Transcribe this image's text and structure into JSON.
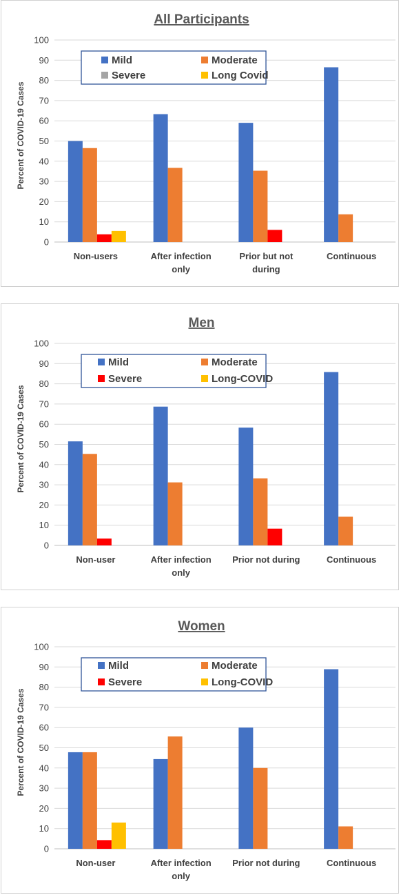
{
  "chart_data": [
    {
      "type": "bar",
      "title": "All Participants",
      "ylabel": "Percent of COVID-19 Cases",
      "xlabel": "",
      "ylim": [
        0,
        100
      ],
      "yticks": [
        0,
        10,
        20,
        30,
        40,
        50,
        60,
        70,
        80,
        90,
        100
      ],
      "grid": true,
      "legend_position": "top",
      "categories": [
        [
          "Non-users"
        ],
        [
          "After infection",
          "only"
        ],
        [
          "Prior but not",
          "during"
        ],
        [
          "Continuous"
        ]
      ],
      "series": [
        {
          "name": "Mild",
          "color": "#4472c4",
          "values": [
            50,
            63.3,
            59,
            86.5
          ]
        },
        {
          "name": "Moderate",
          "color": "#ed7d31",
          "values": [
            46.5,
            36.7,
            35.3,
            13.7
          ]
        },
        {
          "name": "Severe",
          "color": "#a5a5a5",
          "values": [
            0,
            0,
            0,
            0
          ]
        },
        {
          "name": "Long Covid",
          "color": "#ffc000",
          "values": [
            5.5,
            0,
            0,
            0
          ]
        },
        {
          "name": "",
          "color": "#ff0000",
          "values": [
            3.8,
            0,
            6,
            0
          ]
        }
      ]
    },
    {
      "type": "bar",
      "title": "Men",
      "ylabel": "Percent of COVID-19 Cases",
      "xlabel": "",
      "ylim": [
        0,
        100
      ],
      "yticks": [
        0,
        10,
        20,
        30,
        40,
        50,
        60,
        70,
        80,
        90,
        100
      ],
      "grid": true,
      "legend_position": "top",
      "categories": [
        [
          "Non-user"
        ],
        [
          "After infection",
          "only"
        ],
        [
          "Prior not during"
        ],
        [
          "Continuous"
        ]
      ],
      "series": [
        {
          "name": "Mild",
          "color": "#4472c4",
          "values": [
            51.5,
            68.7,
            58.3,
            85.8
          ]
        },
        {
          "name": "Moderate",
          "color": "#ed7d31",
          "values": [
            45.3,
            31.2,
            33.2,
            14.2
          ]
        },
        {
          "name": "Severe",
          "color": "#ff0000",
          "values": [
            3.4,
            0,
            8.3,
            0
          ]
        },
        {
          "name": "Long-COVID",
          "color": "#ffc000",
          "values": [
            0,
            0,
            0,
            0
          ]
        }
      ]
    },
    {
      "type": "bar",
      "title": "Women",
      "ylabel": "Percent of COVID-19 Cases",
      "xlabel": "",
      "ylim": [
        0,
        100
      ],
      "yticks": [
        0,
        10,
        20,
        30,
        40,
        50,
        60,
        70,
        80,
        90,
        100
      ],
      "grid": true,
      "legend_position": "top",
      "categories": [
        [
          "Non-user"
        ],
        [
          "After infection",
          "only"
        ],
        [
          "Prior not during"
        ],
        [
          "Continuous"
        ]
      ],
      "series": [
        {
          "name": "Mild",
          "color": "#4472c4",
          "values": [
            47.8,
            44.4,
            60,
            88.9
          ]
        },
        {
          "name": "Moderate",
          "color": "#ed7d31",
          "values": [
            47.8,
            55.6,
            40,
            11.1
          ]
        },
        {
          "name": "Severe",
          "color": "#ff0000",
          "values": [
            4.3,
            0,
            0,
            0
          ]
        },
        {
          "name": "Long-COVID",
          "color": "#ffc000",
          "values": [
            13,
            0,
            0,
            0
          ]
        }
      ]
    }
  ]
}
